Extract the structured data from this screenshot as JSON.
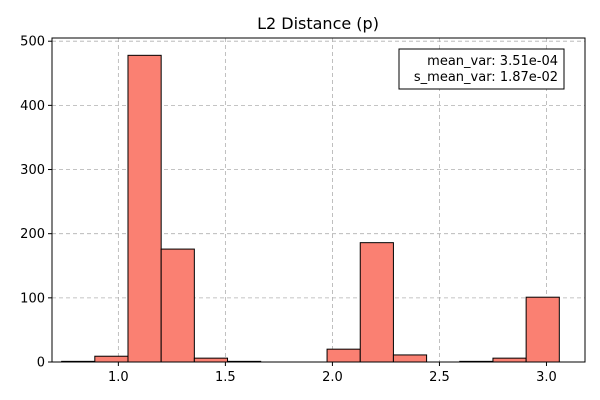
{
  "chart_data": {
    "type": "bar",
    "title": "L2 Distance (p)",
    "xlabel": "",
    "ylabel": "",
    "xlim": [
      0.69,
      3.18
    ],
    "ylim": [
      0,
      505
    ],
    "xticks": [
      "1.0",
      "1.5",
      "2.0",
      "2.5",
      "3.0"
    ],
    "yticks": [
      "0",
      "100",
      "200",
      "300",
      "400",
      "500"
    ],
    "grid": true,
    "bar_color": "#fa8072",
    "edge_color": "#000000",
    "bins": [
      {
        "x0": 0.735,
        "x1": 0.89,
        "count": 1
      },
      {
        "x0": 0.89,
        "x1": 1.045,
        "count": 9
      },
      {
        "x0": 1.045,
        "x1": 1.2,
        "count": 478
      },
      {
        "x0": 1.2,
        "x1": 1.355,
        "count": 176
      },
      {
        "x0": 1.355,
        "x1": 1.51,
        "count": 6
      },
      {
        "x0": 1.51,
        "x1": 1.665,
        "count": 1
      },
      {
        "x0": 1.665,
        "x1": 1.82,
        "count": 0
      },
      {
        "x0": 1.82,
        "x1": 1.975,
        "count": 0
      },
      {
        "x0": 1.975,
        "x1": 2.13,
        "count": 20
      },
      {
        "x0": 2.13,
        "x1": 2.285,
        "count": 186
      },
      {
        "x0": 2.285,
        "x1": 2.44,
        "count": 11
      },
      {
        "x0": 2.44,
        "x1": 2.595,
        "count": 0
      },
      {
        "x0": 2.595,
        "x1": 2.75,
        "count": 1
      },
      {
        "x0": 2.75,
        "x1": 2.905,
        "count": 6
      },
      {
        "x0": 2.905,
        "x1": 3.06,
        "count": 101
      }
    ],
    "legend": {
      "placement": "top-right",
      "lines": [
        "mean_var: 3.51e-04",
        "s_mean_var: 1.87e-02"
      ]
    }
  }
}
